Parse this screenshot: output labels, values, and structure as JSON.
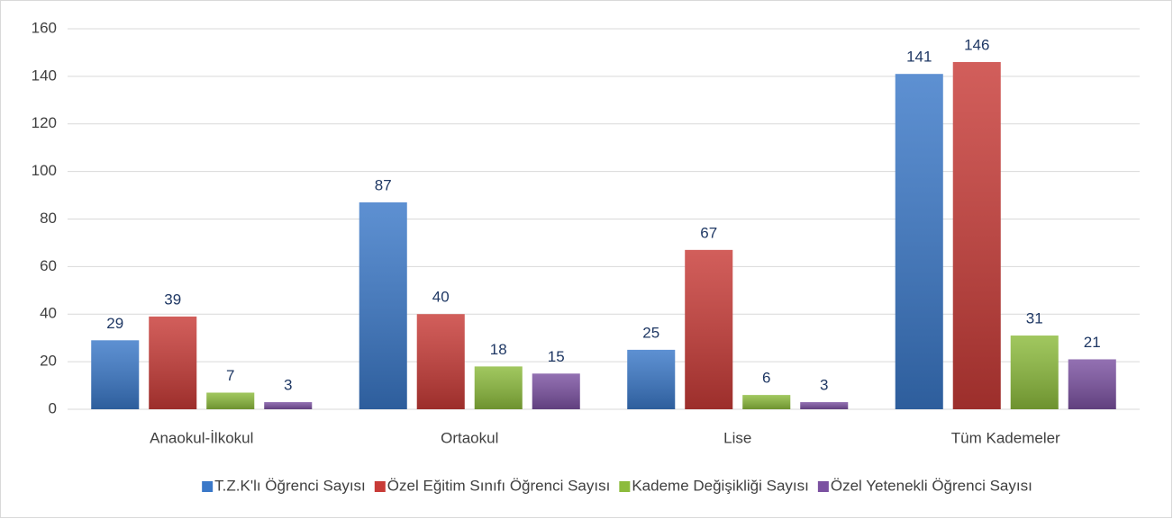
{
  "chart_data": {
    "type": "bar",
    "categories": [
      "Anaokul-İlkokul",
      "Ortaokul",
      "Lise",
      "Tüm Kademeler"
    ],
    "series": [
      {
        "name": "T.Z.K'lı Öğrenci Sayısı",
        "color": "#3a78c8",
        "values": [
          29,
          87,
          25,
          141
        ]
      },
      {
        "name": "Özel Eğitim Sınıfı Öğrenci Sayısı",
        "color": "#c83b37",
        "values": [
          39,
          40,
          67,
          146
        ]
      },
      {
        "name": "Kademe Değişikliği Sayısı",
        "color": "#8cbb3c",
        "values": [
          7,
          18,
          6,
          31
        ]
      },
      {
        "name": "Özel Yetenekli Öğrenci Sayısı",
        "color": "#7b51a1",
        "values": [
          3,
          15,
          3,
          21
        ]
      }
    ],
    "ylim": [
      0,
      160
    ],
    "yticks": [
      0,
      20,
      40,
      60,
      80,
      100,
      120,
      140,
      160
    ],
    "grid": true,
    "legend": "bottom"
  }
}
